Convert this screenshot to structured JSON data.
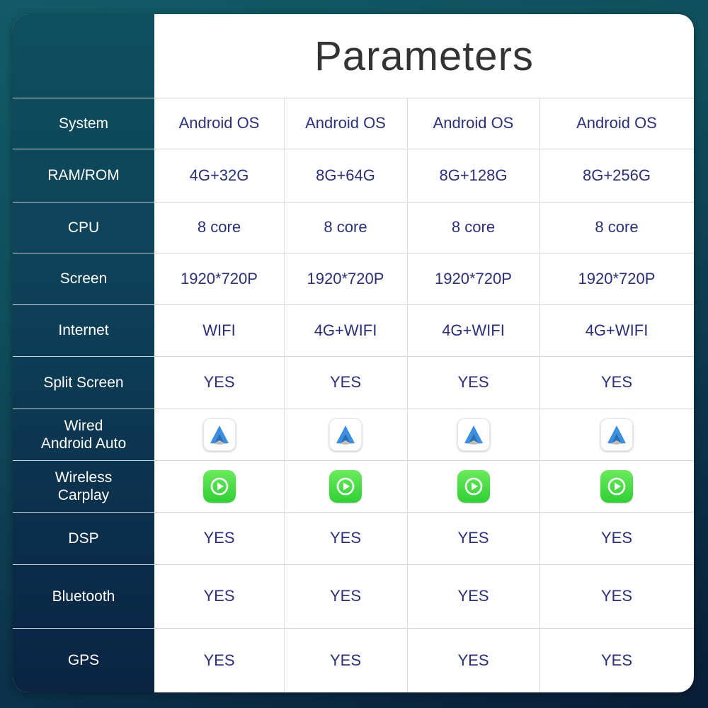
{
  "title": "Parameters",
  "rows": [
    {
      "label": "System",
      "values": [
        "Android OS",
        "Android OS",
        "Android OS",
        "Android OS"
      ]
    },
    {
      "label": "RAM/ROM",
      "values": [
        "4G+32G",
        "8G+64G",
        "8G+128G",
        "8G+256G"
      ]
    },
    {
      "label": "CPU",
      "values": [
        "8 core",
        "8 core",
        "8 core",
        "8 core"
      ]
    },
    {
      "label": "Screen",
      "values": [
        "1920*720P",
        "1920*720P",
        "1920*720P",
        "1920*720P"
      ]
    },
    {
      "label": "Internet",
      "values": [
        "WIFI",
        "4G+WIFI",
        "4G+WIFI",
        "4G+WIFI"
      ]
    },
    {
      "label": "Split Screen",
      "values": [
        "YES",
        "YES",
        "YES",
        "YES"
      ]
    },
    {
      "label": "Wired\nAndroid Auto",
      "icon": "android-auto-icon"
    },
    {
      "label": "Wireless\nCarplay",
      "icon": "carplay-icon"
    },
    {
      "label": "DSP",
      "values": [
        "YES",
        "YES",
        "YES",
        "YES"
      ]
    },
    {
      "label": "Bluetooth",
      "values": [
        "YES",
        "YES",
        "YES",
        "YES"
      ]
    },
    {
      "label": "GPS",
      "values": [
        "YES",
        "YES",
        "YES",
        "YES"
      ]
    }
  ],
  "colors": {
    "sidebar": "#0d3f57",
    "cell_text": "#2a2f7a",
    "carplay_green": "#3fd83a",
    "android_auto_blue": "#3b8fe0"
  }
}
